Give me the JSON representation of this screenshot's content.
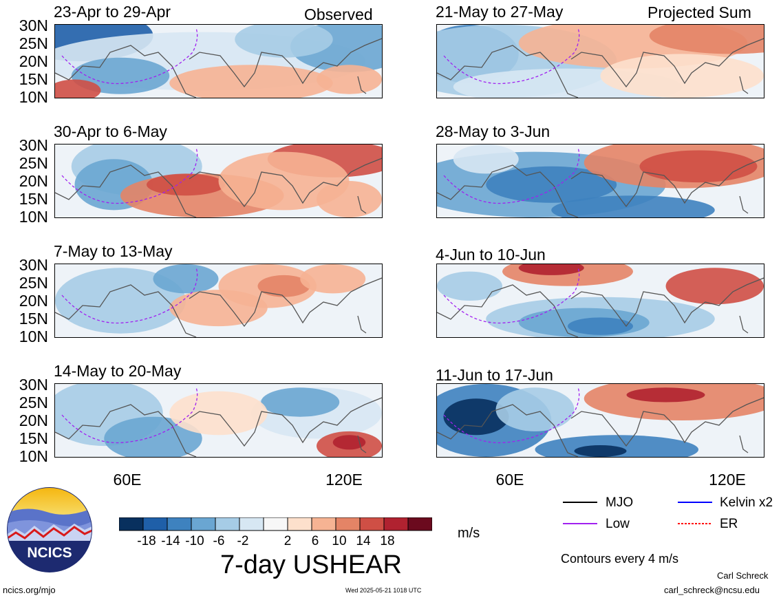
{
  "observed_label": "Observed",
  "projected_label": "Projected Sum",
  "lat_labels": [
    "30N",
    "25N",
    "20N",
    "15N",
    "10N"
  ],
  "lon_labels": [
    "60E",
    "120E"
  ],
  "panels": [
    {
      "title": "23-Apr to 29-Apr"
    },
    {
      "title": "21-May to 27-May"
    },
    {
      "title": "30-Apr to 6-May"
    },
    {
      "title": "28-May to 3-Jun"
    },
    {
      "title": "7-May to 13-May"
    },
    {
      "title": "4-Jun to 10-Jun"
    },
    {
      "title": "14-May to 20-May"
    },
    {
      "title": "11-Jun to 17-Jun"
    }
  ],
  "colorbar": {
    "ticks": [
      "-18",
      "-14",
      "-10",
      "-6",
      "-2",
      "2",
      "6",
      "10",
      "14",
      "18"
    ],
    "colors": [
      "#08305e",
      "#1f5fa8",
      "#3e82bf",
      "#6aa6d2",
      "#a6cce6",
      "#d7e7f3",
      "#f7f7f7",
      "#fde0cc",
      "#f6b393",
      "#e48466",
      "#cf4f45",
      "#b02230",
      "#6b0a1e"
    ],
    "units": "m/s"
  },
  "variable_title": "7-day USHEAR",
  "legend": [
    {
      "label": "MJO",
      "color": "#000000",
      "style": "solid"
    },
    {
      "label": "Kelvin x2",
      "color": "#0000ff",
      "style": "solid"
    },
    {
      "label": "Low",
      "color": "#a020f0",
      "style": "solid"
    },
    {
      "label": "ER",
      "color": "#ff0000",
      "style": "dashed"
    }
  ],
  "contour_note": "Contours every 4 m/s",
  "logo_text": "NCICS",
  "footer": {
    "url": "ncics.org/mjo",
    "timestamp": "Wed 2025-05-21 1018 UTC",
    "author": "Carl Schreck",
    "email": "carl_schreck@ncsu.edu"
  }
}
